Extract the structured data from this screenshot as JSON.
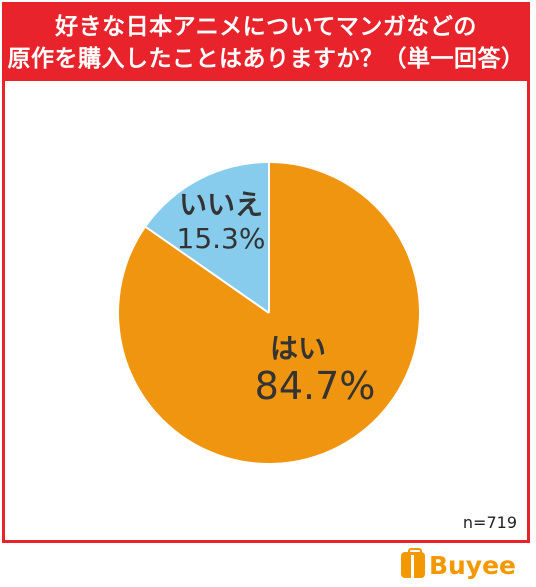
{
  "title_line1": "好きな日本アニメについてマンガなどの",
  "title_line2": "原作を購入したことはありますか？（単一回答）",
  "sample_size": "n=719",
  "brand": "Buyee",
  "colors": {
    "frame": "#e8232c",
    "yes": "#f0950f",
    "no": "#87ccec",
    "text": "#333333",
    "brand": "#f39800"
  },
  "chart_data": {
    "type": "pie",
    "slices": [
      {
        "label": "はい",
        "percent_label": "84.7%",
        "value": 84.7
      },
      {
        "label": "いいえ",
        "percent_label": "15.3%",
        "value": 15.3
      }
    ]
  }
}
